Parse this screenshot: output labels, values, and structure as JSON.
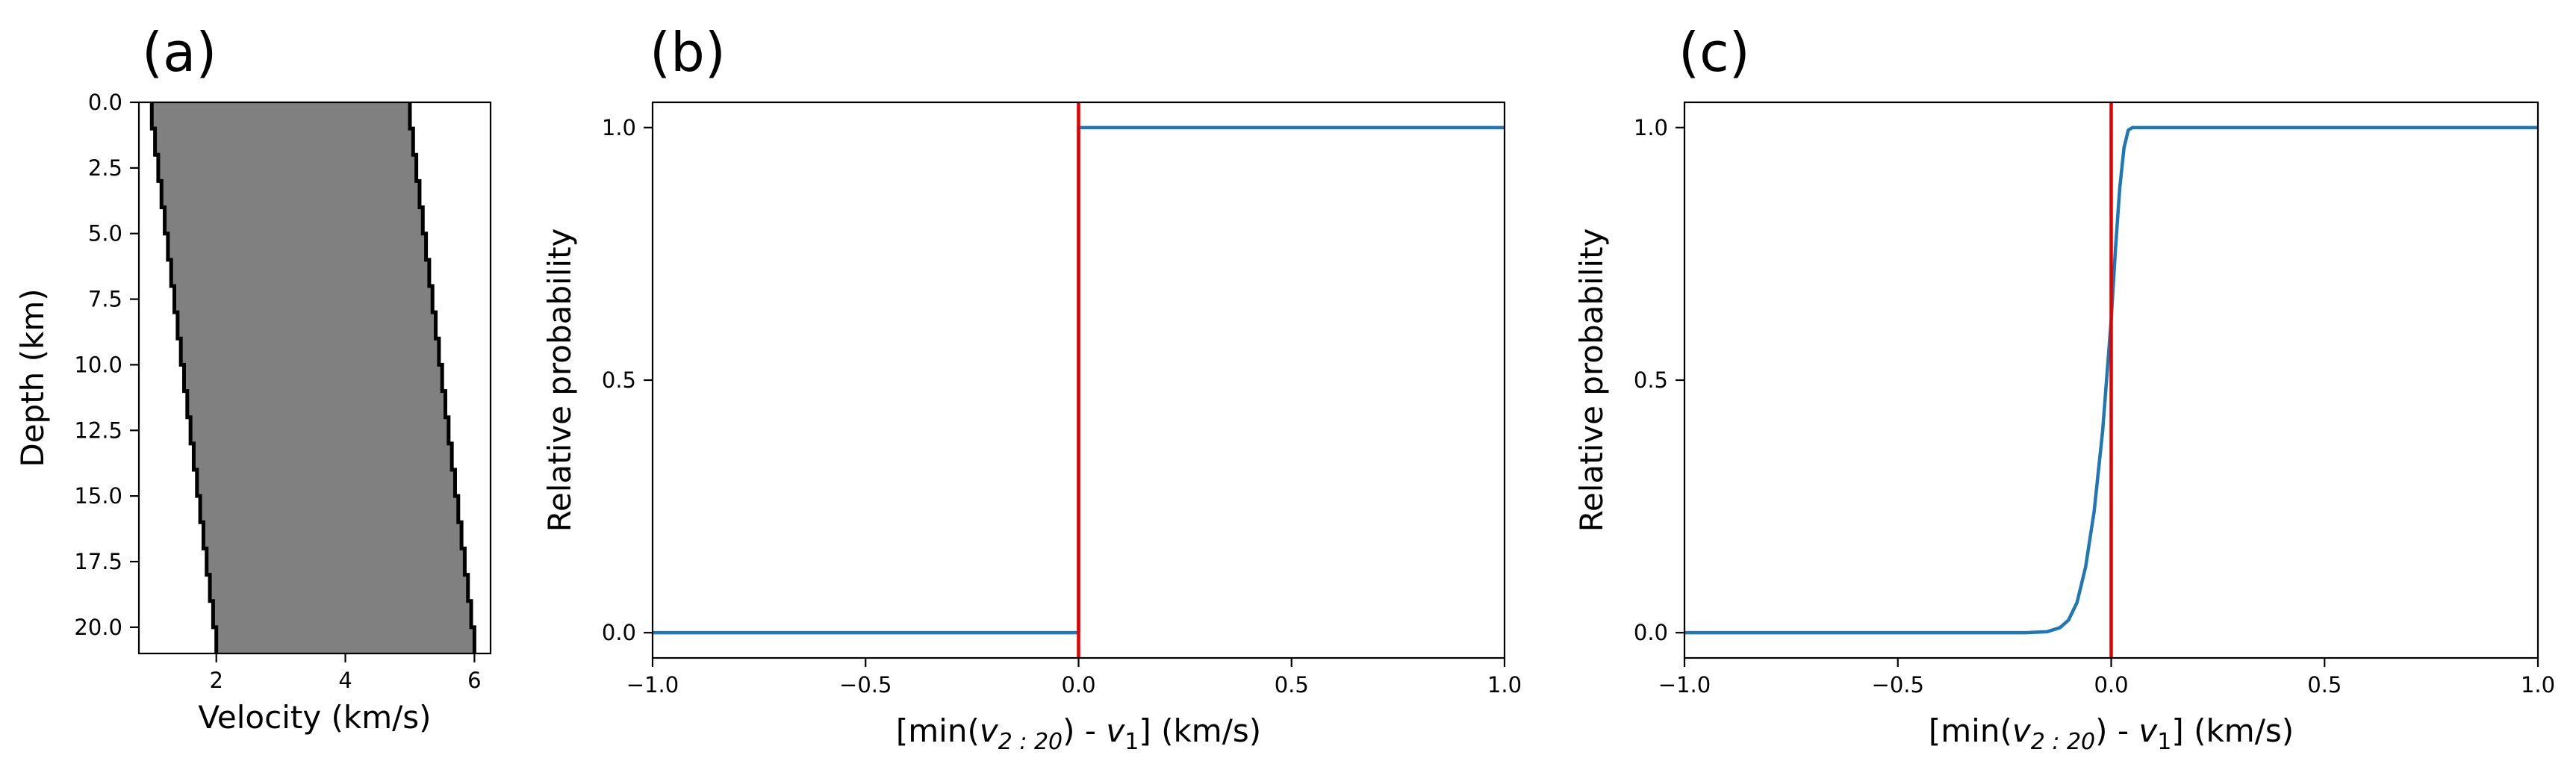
{
  "chart_data": [
    {
      "type": "area",
      "panel_label": "(a)",
      "xlabel": "Velocity (km/s)",
      "ylabel": "Depth (km)",
      "xlim": [
        0.8,
        6.25
      ],
      "ylim": [
        21.0,
        0.0
      ],
      "y_inverted": true,
      "xticks": [
        2,
        4,
        6
      ],
      "xtick_labels": [
        "2",
        "4",
        "6"
      ],
      "yticks": [
        0.0,
        2.5,
        5.0,
        7.5,
        10.0,
        12.5,
        15.0,
        17.5,
        20.0
      ],
      "ytick_labels": [
        "0.0",
        "2.5",
        "5.0",
        "7.5",
        "10.0",
        "12.5",
        "15.0",
        "17.5",
        "20.0"
      ],
      "grid": false,
      "layer_boundaries_km": [
        0,
        1,
        2,
        3,
        4,
        5,
        6,
        7,
        8,
        9,
        10,
        11,
        12,
        13,
        14,
        15,
        16,
        17,
        18,
        19,
        20,
        21
      ],
      "lower_velocity": [
        1.0,
        1.05,
        1.1,
        1.15,
        1.2,
        1.25,
        1.3,
        1.35,
        1.4,
        1.45,
        1.5,
        1.55,
        1.6,
        1.65,
        1.7,
        1.75,
        1.8,
        1.85,
        1.9,
        1.95,
        2.0
      ],
      "upper_velocity": [
        5.0,
        5.05,
        5.1,
        5.15,
        5.2,
        5.25,
        5.3,
        5.35,
        5.4,
        5.45,
        5.5,
        5.55,
        5.6,
        5.65,
        5.7,
        5.75,
        5.8,
        5.85,
        5.9,
        5.95,
        6.0
      ],
      "fill_color": "#808080",
      "edge_color": "#000000"
    },
    {
      "type": "line",
      "panel_label": "(b)",
      "xlabel": "[min(",
      "xlabel_var": "v",
      "xlabel_sub": "2 : 20",
      "xlabel_mid": ") - ",
      "xlabel_var2": "v",
      "xlabel_sub2": "1",
      "xlabel_end": "] (km/s)",
      "ylabel": "Relative probability",
      "xlim": [
        -1.0,
        1.0
      ],
      "ylim": [
        -0.05,
        1.05
      ],
      "xticks": [
        -1.0,
        -0.5,
        0.0,
        0.5,
        1.0
      ],
      "xtick_labels": [
        "−1.0",
        "−0.5",
        "0.0",
        "0.5",
        "1.0"
      ],
      "yticks": [
        0.0,
        0.5,
        1.0
      ],
      "ytick_labels": [
        "0.0",
        "0.5",
        "1.0"
      ],
      "grid": false,
      "series": [
        {
          "x": [
            -1.0,
            0.0,
            0.0,
            1.0
          ],
          "y": [
            0.0,
            0.0,
            1.0,
            1.0
          ],
          "color": "#1f77b4"
        }
      ],
      "vline_x": 0.0,
      "vline_color": "#e50000"
    },
    {
      "type": "line",
      "panel_label": "(c)",
      "xlabel": "[min(",
      "xlabel_var": "v",
      "xlabel_sub": "2 : 20",
      "xlabel_mid": ") - ",
      "xlabel_var2": "v",
      "xlabel_sub2": "1",
      "xlabel_end": "] (km/s)",
      "ylabel": "Relative probability",
      "xlim": [
        -1.0,
        1.0
      ],
      "ylim": [
        -0.05,
        1.05
      ],
      "xticks": [
        -1.0,
        -0.5,
        0.0,
        0.5,
        1.0
      ],
      "xtick_labels": [
        "−1.0",
        "−0.5",
        "0.0",
        "0.5",
        "1.0"
      ],
      "yticks": [
        0.0,
        0.5,
        1.0
      ],
      "ytick_labels": [
        "0.0",
        "0.5",
        "1.0"
      ],
      "grid": false,
      "series": [
        {
          "x": [
            -1.0,
            -0.2,
            -0.15,
            -0.12,
            -0.1,
            -0.08,
            -0.06,
            -0.04,
            -0.02,
            0.0,
            0.01,
            0.02,
            0.03,
            0.04,
            0.05,
            0.1,
            1.0
          ],
          "y": [
            0.0,
            0.0,
            0.002,
            0.01,
            0.025,
            0.06,
            0.13,
            0.24,
            0.4,
            0.62,
            0.76,
            0.88,
            0.96,
            0.995,
            1.0,
            1.0,
            1.0
          ],
          "color": "#1f77b4"
        }
      ],
      "vline_x": 0.0,
      "vline_color": "#e50000"
    }
  ]
}
